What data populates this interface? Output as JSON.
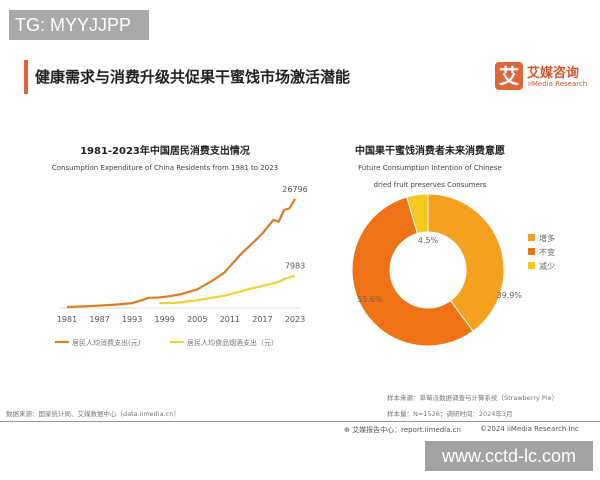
{
  "watermark_top": "TG: MYYJJPP",
  "watermark_bottom": "www.cctd-lc.com",
  "header": {
    "title": "健康需求与消费升级共促果干蜜饯市场激活潜能",
    "logo_mark": "艾",
    "logo_cn": "艾媒咨询",
    "logo_en": "iiMedia Research"
  },
  "chart_data": [
    {
      "type": "line",
      "title": "1981-2023年中国居民消费支出情况",
      "subtitle": "Consumption Expenditure of China Residents from 1981 to 2023",
      "x_ticks": [
        "1981",
        "1987",
        "1993",
        "1999",
        "2005",
        "2011",
        "2017",
        "2023"
      ],
      "xlim": [
        1981,
        2023
      ],
      "ylim": [
        0,
        28000
      ],
      "grid": false,
      "legend": "bottom",
      "series": [
        {
          "name": "居民人均消费支出(元)",
          "color": "#e07b22",
          "points": [
            [
              1981,
              250
            ],
            [
              1985,
              440
            ],
            [
              1990,
              830
            ],
            [
              1993,
              1200
            ],
            [
              1995,
              2000
            ],
            [
              1996,
              2500
            ],
            [
              1998,
              2600
            ],
            [
              2000,
              2900
            ],
            [
              2002,
              3400
            ],
            [
              2005,
              4600
            ],
            [
              2008,
              6900
            ],
            [
              2010,
              8700
            ],
            [
              2013,
              13200
            ],
            [
              2015,
              15700
            ],
            [
              2017,
              18300
            ],
            [
              2019,
              21600
            ],
            [
              2020,
              21200
            ],
            [
              2021,
              24100
            ],
            [
              2022,
              24500
            ],
            [
              2023,
              26796
            ]
          ],
          "end_label": "26796"
        },
        {
          "name": "居民人均食品烟酒支出（元）",
          "color": "#efd23a",
          "points": [
            [
              1998,
              1200
            ],
            [
              2001,
              1250
            ],
            [
              2005,
              1900
            ],
            [
              2008,
              2600
            ],
            [
              2010,
              3000
            ],
            [
              2013,
              4100
            ],
            [
              2015,
              4800
            ],
            [
              2017,
              5400
            ],
            [
              2019,
              6100
            ],
            [
              2020,
              6400
            ],
            [
              2021,
              7100
            ],
            [
              2022,
              7500
            ],
            [
              2023,
              7983
            ]
          ],
          "end_label": "7983"
        }
      ]
    },
    {
      "type": "pie",
      "donut": true,
      "title": "中国果干蜜饯消费者未来消费意愿",
      "subtitle": "Future Consumption Intention of Chinese dried fruit preserves Consumers",
      "legend": "right",
      "slices": [
        {
          "label": "增多",
          "value": 39.9,
          "text": "39.9%",
          "color": "#f5a01e"
        },
        {
          "label": "不变",
          "value": 55.6,
          "text": "55.6%",
          "color": "#f07216"
        },
        {
          "label": "减少",
          "value": 4.5,
          "text": "4.5%",
          "color": "#f7c81c"
        }
      ]
    }
  ],
  "footer": {
    "source_left": "数据来源：国家统计局、艾媒数据中心（data.iimedia.cn）",
    "sample_source": "样本来源：草莓派数据调查与计算系统（Strawberry Pie）",
    "sample_size": "样本量：N=1526；调研时间：2024年3月",
    "report_center": "艾媒报告中心：report.iimedia.cn",
    "copyright": "©2024  iiMedia Research Inc"
  }
}
